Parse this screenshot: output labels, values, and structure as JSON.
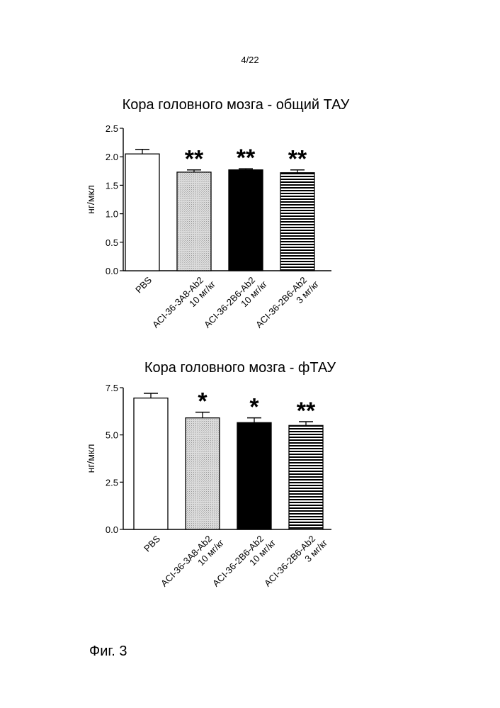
{
  "page": {
    "number": "4/22",
    "figure_label": "Фиг. 3"
  },
  "chart_data": [
    {
      "type": "bar",
      "title": "Кора головного мозга - общий ТАУ",
      "ylabel": "нг/мкл",
      "ylim": [
        0,
        2.5
      ],
      "yticks": [
        "0.0",
        "0.5",
        "1.0",
        "1.5",
        "2.0",
        "2.5"
      ],
      "categories": [
        [
          "PBS"
        ],
        [
          "ACI-36-3A8-Ab2",
          "10 мг/кг"
        ],
        [
          "ACI-36-2B6-Ab2",
          "10 мг/кг"
        ],
        [
          "ACI-36-2B6-Ab2",
          "3 мг/кг"
        ]
      ],
      "values": [
        2.05,
        1.73,
        1.77,
        1.72
      ],
      "errors": [
        0.08,
        0.04,
        0.02,
        0.05
      ],
      "significance": [
        "",
        "**",
        "**",
        "**"
      ],
      "fills": [
        "white",
        "dotted-gray",
        "black",
        "horizontal-stripes"
      ]
    },
    {
      "type": "bar",
      "title": "Кора головного мозга - фТАУ",
      "ylabel": "нг/мкл",
      "ylim": [
        0,
        7.5
      ],
      "yticks": [
        "0.0",
        "2.5",
        "5.0",
        "7.5"
      ],
      "categories": [
        [
          "PBS"
        ],
        [
          "ACI-36-3A8-Ab2",
          "10 мг/кг"
        ],
        [
          "ACI-36-2B6-Ab2",
          "10 мг/кг"
        ],
        [
          "ACI-36-2B6-Ab2",
          "3 мг/кг"
        ]
      ],
      "values": [
        6.95,
        5.9,
        5.65,
        5.5
      ],
      "errors": [
        0.25,
        0.3,
        0.25,
        0.2
      ],
      "significance": [
        "",
        "*",
        "*",
        "**"
      ],
      "fills": [
        "white",
        "dotted-gray",
        "black",
        "horizontal-stripes"
      ]
    }
  ]
}
